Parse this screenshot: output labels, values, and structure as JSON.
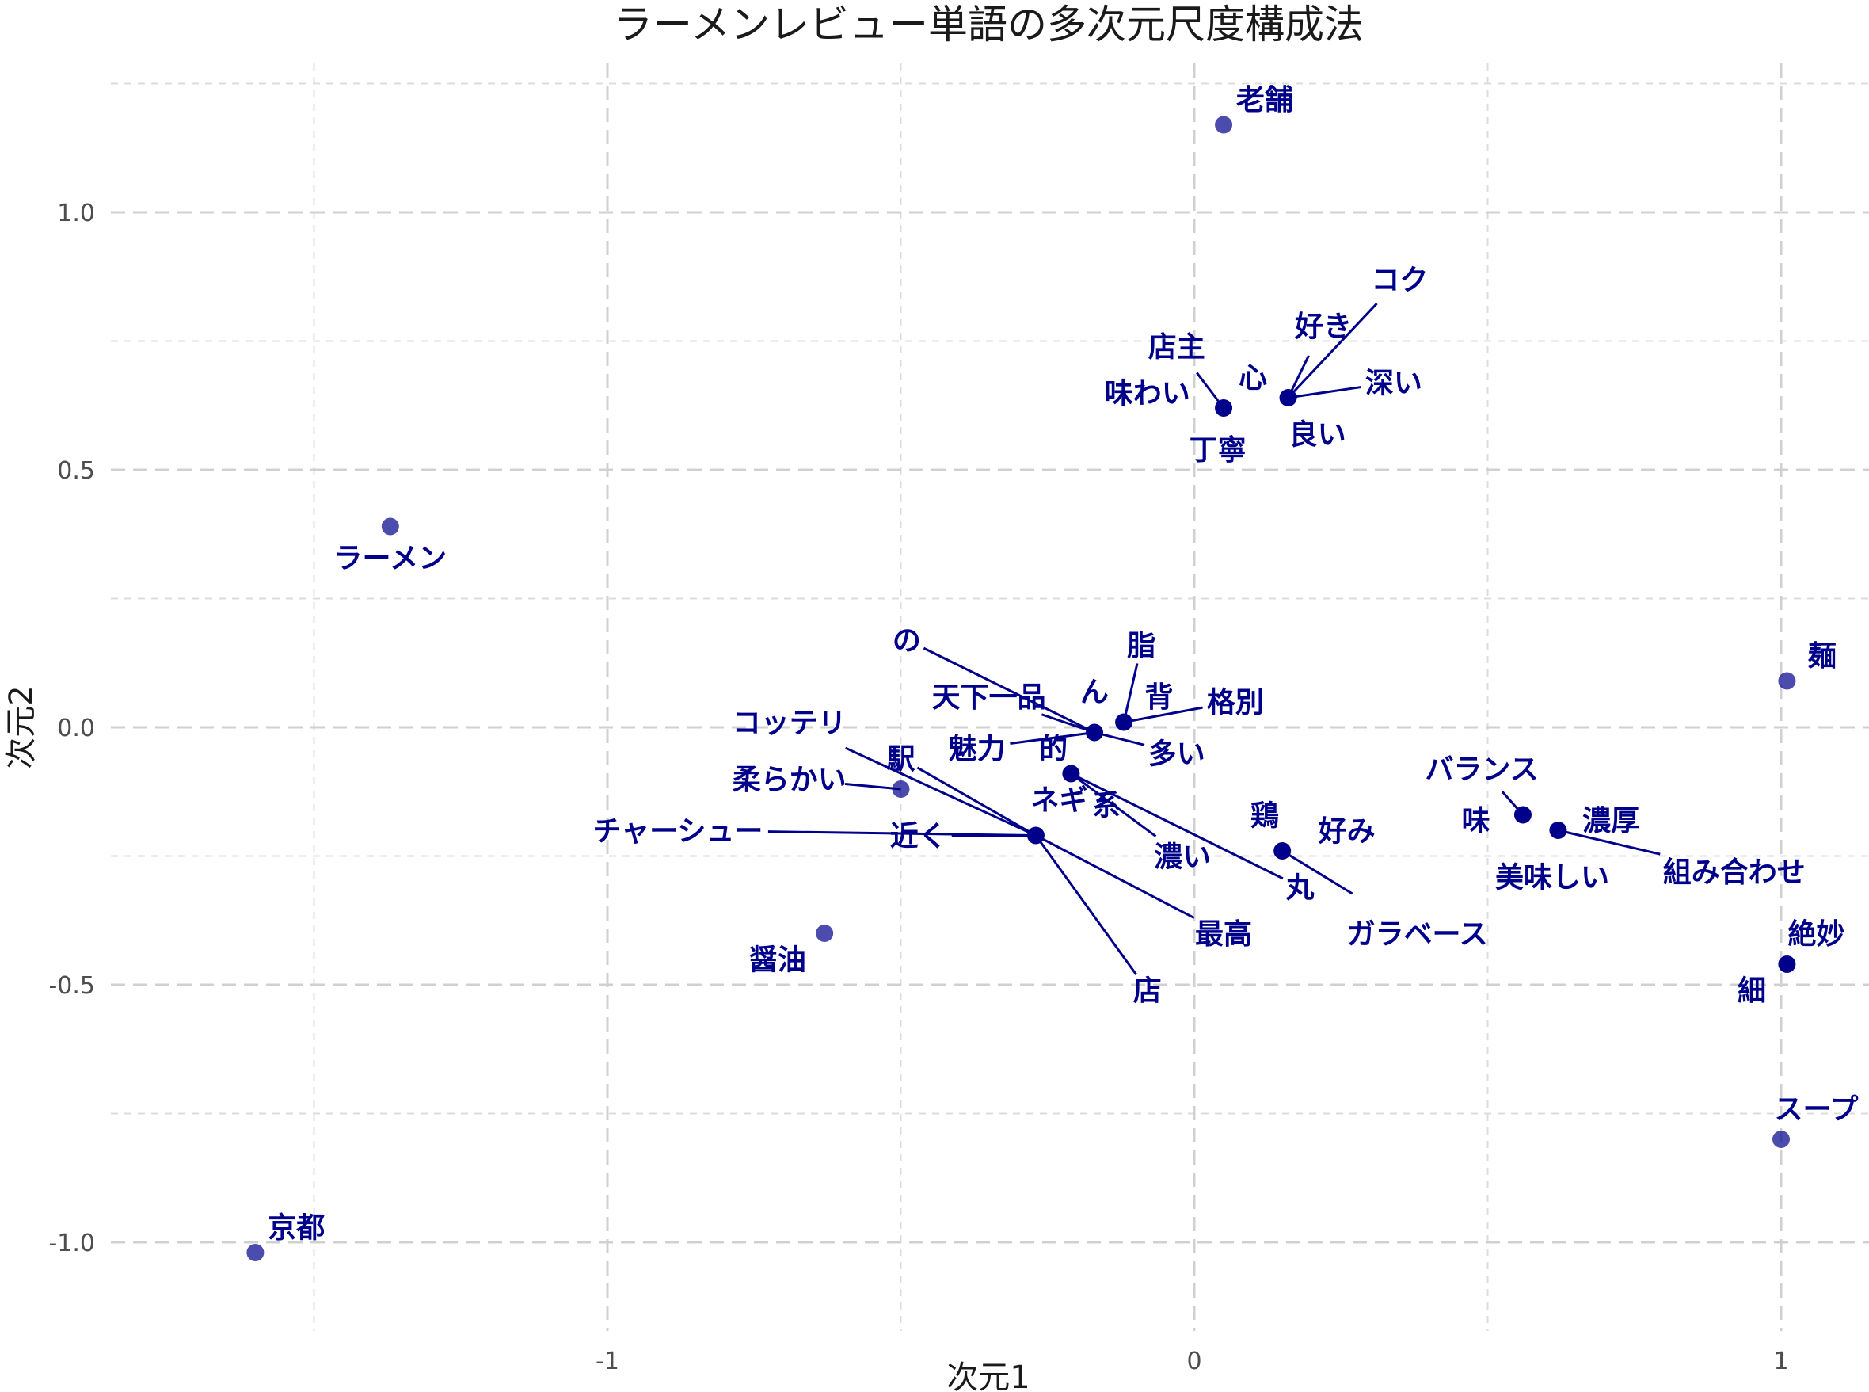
{
  "chart_data": {
    "type": "scatter",
    "title": "ラーメンレビュー単語の多次元尺度構成法",
    "xlabel": "次元1",
    "ylabel": "次元2",
    "xlim": [
      -1.4,
      1.15
    ],
    "ylim": [
      -1.15,
      1.25
    ],
    "xticks": [
      -1,
      0,
      1
    ],
    "yticks": [
      -1.0,
      -0.5,
      0.0,
      0.5,
      1.0
    ],
    "xtick_labels": [
      "-1",
      "0",
      "1"
    ],
    "ytick_labels": [
      "-1.0",
      "-0.5",
      "0.0",
      "0.5",
      "1.0"
    ],
    "grid": true,
    "point_color": "#00008b",
    "points": [
      {
        "x": 0.05,
        "y": 1.17,
        "alpha": 0.7,
        "labels": [
          {
            "text": "老舗",
            "lx": 0.12,
            "ly": 1.22,
            "leader": false
          }
        ]
      },
      {
        "x": 0.05,
        "y": 0.62,
        "alpha": 1.0,
        "labels": [
          {
            "text": "店主",
            "lx": -0.03,
            "ly": 0.74,
            "leader": true
          },
          {
            "text": "味わい",
            "lx": -0.08,
            "ly": 0.65,
            "leader": false
          },
          {
            "text": "丁寧",
            "lx": 0.04,
            "ly": 0.54,
            "leader": false
          }
        ]
      },
      {
        "x": 0.16,
        "y": 0.64,
        "alpha": 1.0,
        "labels": [
          {
            "text": "コク",
            "lx": 0.35,
            "ly": 0.87,
            "leader": true
          },
          {
            "text": "好き",
            "lx": 0.22,
            "ly": 0.78,
            "leader": true
          },
          {
            "text": "深い",
            "lx": 0.34,
            "ly": 0.67,
            "leader": true
          },
          {
            "text": "心",
            "lx": 0.1,
            "ly": 0.68,
            "leader": false
          },
          {
            "text": "良い",
            "lx": 0.21,
            "ly": 0.57,
            "leader": false
          }
        ]
      },
      {
        "x": -1.37,
        "y": 0.39,
        "alpha": 0.7,
        "labels": [
          {
            "text": "ラーメン",
            "lx": -1.37,
            "ly": 0.33,
            "leader": false
          }
        ]
      },
      {
        "x": 1.01,
        "y": 0.09,
        "alpha": 0.7,
        "labels": [
          {
            "text": "麺",
            "lx": 1.07,
            "ly": 0.14,
            "leader": false
          }
        ]
      },
      {
        "x": -0.12,
        "y": 0.01,
        "alpha": 1.0,
        "labels": [
          {
            "text": "脂",
            "lx": -0.09,
            "ly": 0.16,
            "leader": true
          },
          {
            "text": "背",
            "lx": -0.06,
            "ly": 0.06,
            "leader": false
          },
          {
            "text": "格別",
            "lx": 0.07,
            "ly": 0.05,
            "leader": true
          }
        ]
      },
      {
        "x": -0.17,
        "y": -0.01,
        "alpha": 1.0,
        "labels": [
          {
            "text": "の",
            "lx": -0.49,
            "ly": 0.17,
            "leader": true
          },
          {
            "text": "天下一品",
            "lx": -0.35,
            "ly": 0.06,
            "leader": true
          },
          {
            "text": "ん",
            "lx": -0.17,
            "ly": 0.07,
            "leader": false
          },
          {
            "text": "魅力",
            "lx": -0.37,
            "ly": -0.04,
            "leader": true
          },
          {
            "text": "的",
            "lx": -0.24,
            "ly": -0.04,
            "leader": false
          },
          {
            "text": "多い",
            "lx": -0.03,
            "ly": -0.05,
            "leader": true
          }
        ]
      },
      {
        "x": -0.21,
        "y": -0.09,
        "alpha": 1.0,
        "labels": [
          {
            "text": "系",
            "lx": -0.15,
            "ly": -0.15,
            "leader": false
          },
          {
            "text": "濃い",
            "lx": -0.02,
            "ly": -0.25,
            "leader": true
          },
          {
            "text": "丸",
            "lx": 0.18,
            "ly": -0.31,
            "leader": true
          }
        ]
      },
      {
        "x": -0.5,
        "y": -0.12,
        "alpha": 0.7,
        "labels": [
          {
            "text": "柔らかい",
            "lx": -0.69,
            "ly": -0.1,
            "leader": true
          }
        ]
      },
      {
        "x": -0.27,
        "y": -0.21,
        "alpha": 1.0,
        "labels": [
          {
            "text": "コッテリ",
            "lx": -0.69,
            "ly": 0.01,
            "leader": true
          },
          {
            "text": "駅",
            "lx": -0.5,
            "ly": -0.06,
            "leader": true
          },
          {
            "text": "ネギ",
            "lx": -0.23,
            "ly": -0.14,
            "leader": false
          },
          {
            "text": "チャーシュー",
            "lx": -0.88,
            "ly": -0.2,
            "leader": true
          },
          {
            "text": "近く",
            "lx": -0.47,
            "ly": -0.21,
            "leader": true
          },
          {
            "text": "最高",
            "lx": 0.05,
            "ly": -0.4,
            "leader": true
          },
          {
            "text": "店",
            "lx": -0.08,
            "ly": -0.51,
            "leader": true
          }
        ]
      },
      {
        "x": 0.15,
        "y": -0.24,
        "alpha": 1.0,
        "labels": [
          {
            "text": "鶏",
            "lx": 0.12,
            "ly": -0.17,
            "leader": false
          },
          {
            "text": "好み",
            "lx": 0.26,
            "ly": -0.2,
            "leader": false
          },
          {
            "text": "ガラベース",
            "lx": 0.38,
            "ly": -0.4,
            "leader": true
          }
        ]
      },
      {
        "x": 0.56,
        "y": -0.17,
        "alpha": 1.0,
        "labels": [
          {
            "text": "バランス",
            "lx": 0.49,
            "ly": -0.08,
            "leader": true
          },
          {
            "text": "味",
            "lx": 0.48,
            "ly": -0.18,
            "leader": false
          }
        ]
      },
      {
        "x": 0.62,
        "y": -0.2,
        "alpha": 1.0,
        "labels": [
          {
            "text": "濃厚",
            "lx": 0.71,
            "ly": -0.18,
            "leader": false
          },
          {
            "text": "組み合わせ",
            "lx": 0.92,
            "ly": -0.28,
            "leader": true
          },
          {
            "text": "美味しい",
            "lx": 0.61,
            "ly": -0.29,
            "leader": false
          }
        ]
      },
      {
        "x": -0.63,
        "y": -0.4,
        "alpha": 0.7,
        "labels": [
          {
            "text": "醤油",
            "lx": -0.71,
            "ly": -0.45,
            "leader": false
          }
        ]
      },
      {
        "x": 1.01,
        "y": -0.46,
        "alpha": 1.0,
        "labels": [
          {
            "text": "絶妙",
            "lx": 1.06,
            "ly": -0.4,
            "leader": false
          },
          {
            "text": "細",
            "lx": 0.95,
            "ly": -0.51,
            "leader": false
          }
        ]
      },
      {
        "x": 1.0,
        "y": -0.8,
        "alpha": 0.7,
        "labels": [
          {
            "text": "スープ",
            "lx": 1.06,
            "ly": -0.74,
            "leader": false
          }
        ]
      },
      {
        "x": -1.6,
        "y": -1.02,
        "alpha": 0.7,
        "labels": [
          {
            "text": "京都",
            "lx": -1.53,
            "ly": -0.97,
            "leader": false
          }
        ]
      }
    ]
  }
}
